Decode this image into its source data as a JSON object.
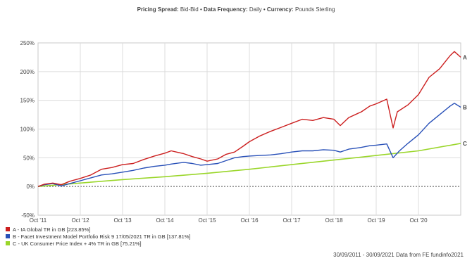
{
  "header": {
    "spread_label": "Pricing Spread:",
    "spread_value": "Bid-Bid",
    "freq_label": "Data Frequency:",
    "freq_value": "Daily",
    "currency_label": "Currency:",
    "currency_value": "Pounds Sterling"
  },
  "footer_text": "30/09/2011 - 30/09/2021 Data from FE fundinfo2021",
  "chart_data": {
    "type": "line",
    "x_tick_labels": [
      "Oct '11",
      "Oct '12",
      "Oct '13",
      "Oct '14",
      "Oct '15",
      "Oct '16",
      "Oct '17",
      "Oct '18",
      "Oct '19",
      "Oct '20"
    ],
    "y_tick_labels": [
      "250%",
      "200%",
      "150%",
      "100%",
      "50%",
      "0%",
      "-50%"
    ],
    "ylim": [
      -50,
      250
    ],
    "xlim": [
      2011.75,
      2021.75
    ],
    "grid": true,
    "legend_position": "bottom-left",
    "series": [
      {
        "name": "A - IA Global TR in GB [223.85%]",
        "end_label": "A",
        "color": "#cc1f1f",
        "points": [
          [
            2011.75,
            0
          ],
          [
            2011.9,
            4
          ],
          [
            2012.1,
            6
          ],
          [
            2012.3,
            3
          ],
          [
            2012.5,
            9
          ],
          [
            2012.75,
            14
          ],
          [
            2013.0,
            20
          ],
          [
            2013.25,
            30
          ],
          [
            2013.5,
            33
          ],
          [
            2013.75,
            38
          ],
          [
            2014.0,
            40
          ],
          [
            2014.25,
            47
          ],
          [
            2014.5,
            53
          ],
          [
            2014.75,
            58
          ],
          [
            2014.9,
            62
          ],
          [
            2015.2,
            57
          ],
          [
            2015.4,
            52
          ],
          [
            2015.6,
            48
          ],
          [
            2015.75,
            44
          ],
          [
            2016.0,
            48
          ],
          [
            2016.2,
            56
          ],
          [
            2016.4,
            60
          ],
          [
            2016.6,
            70
          ],
          [
            2016.75,
            78
          ],
          [
            2017.0,
            88
          ],
          [
            2017.25,
            96
          ],
          [
            2017.5,
            103
          ],
          [
            2017.75,
            110
          ],
          [
            2018.0,
            117
          ],
          [
            2018.25,
            115
          ],
          [
            2018.5,
            120
          ],
          [
            2018.75,
            117
          ],
          [
            2018.9,
            106
          ],
          [
            2019.1,
            120
          ],
          [
            2019.4,
            130
          ],
          [
            2019.6,
            140
          ],
          [
            2019.75,
            144
          ],
          [
            2020.0,
            152
          ],
          [
            2020.15,
            102
          ],
          [
            2020.25,
            130
          ],
          [
            2020.5,
            142
          ],
          [
            2020.75,
            160
          ],
          [
            2021.0,
            190
          ],
          [
            2021.25,
            205
          ],
          [
            2021.5,
            228
          ],
          [
            2021.6,
            235
          ],
          [
            2021.75,
            225
          ]
        ]
      },
      {
        "name": "B - Facet Investment Model Portfolio Risk 9 17/05/2021 TR in GB [137.81%]",
        "end_label": "B",
        "color": "#2850b8",
        "points": [
          [
            2011.75,
            0
          ],
          [
            2011.9,
            3
          ],
          [
            2012.1,
            5
          ],
          [
            2012.3,
            1
          ],
          [
            2012.5,
            5
          ],
          [
            2012.75,
            10
          ],
          [
            2013.0,
            15
          ],
          [
            2013.25,
            20
          ],
          [
            2013.5,
            22
          ],
          [
            2013.75,
            25
          ],
          [
            2014.0,
            28
          ],
          [
            2014.25,
            32
          ],
          [
            2014.5,
            35
          ],
          [
            2014.75,
            37
          ],
          [
            2014.9,
            39
          ],
          [
            2015.2,
            42
          ],
          [
            2015.4,
            40
          ],
          [
            2015.6,
            37
          ],
          [
            2015.75,
            38
          ],
          [
            2016.0,
            40
          ],
          [
            2016.2,
            45
          ],
          [
            2016.4,
            50
          ],
          [
            2016.6,
            52
          ],
          [
            2016.75,
            53
          ],
          [
            2017.0,
            54
          ],
          [
            2017.25,
            55
          ],
          [
            2017.5,
            57
          ],
          [
            2017.75,
            60
          ],
          [
            2018.0,
            62
          ],
          [
            2018.25,
            62
          ],
          [
            2018.5,
            64
          ],
          [
            2018.75,
            63
          ],
          [
            2018.9,
            60
          ],
          [
            2019.1,
            65
          ],
          [
            2019.4,
            68
          ],
          [
            2019.6,
            71
          ],
          [
            2019.75,
            72
          ],
          [
            2020.0,
            74
          ],
          [
            2020.15,
            50
          ],
          [
            2020.3,
            62
          ],
          [
            2020.5,
            75
          ],
          [
            2020.75,
            90
          ],
          [
            2021.0,
            110
          ],
          [
            2021.25,
            125
          ],
          [
            2021.5,
            140
          ],
          [
            2021.6,
            145
          ],
          [
            2021.75,
            138
          ]
        ]
      },
      {
        "name": "C - UK Consumer Price Index + 4% TR in GB [75.21%]",
        "end_label": "C",
        "color": "#9ad62a",
        "points": [
          [
            2011.75,
            0
          ],
          [
            2012.75,
            6
          ],
          [
            2013.75,
            12
          ],
          [
            2014.75,
            17
          ],
          [
            2015.75,
            23
          ],
          [
            2016.75,
            30
          ],
          [
            2017.75,
            38
          ],
          [
            2018.75,
            46
          ],
          [
            2019.75,
            54
          ],
          [
            2020.75,
            62
          ],
          [
            2021.75,
            75
          ]
        ]
      }
    ]
  }
}
